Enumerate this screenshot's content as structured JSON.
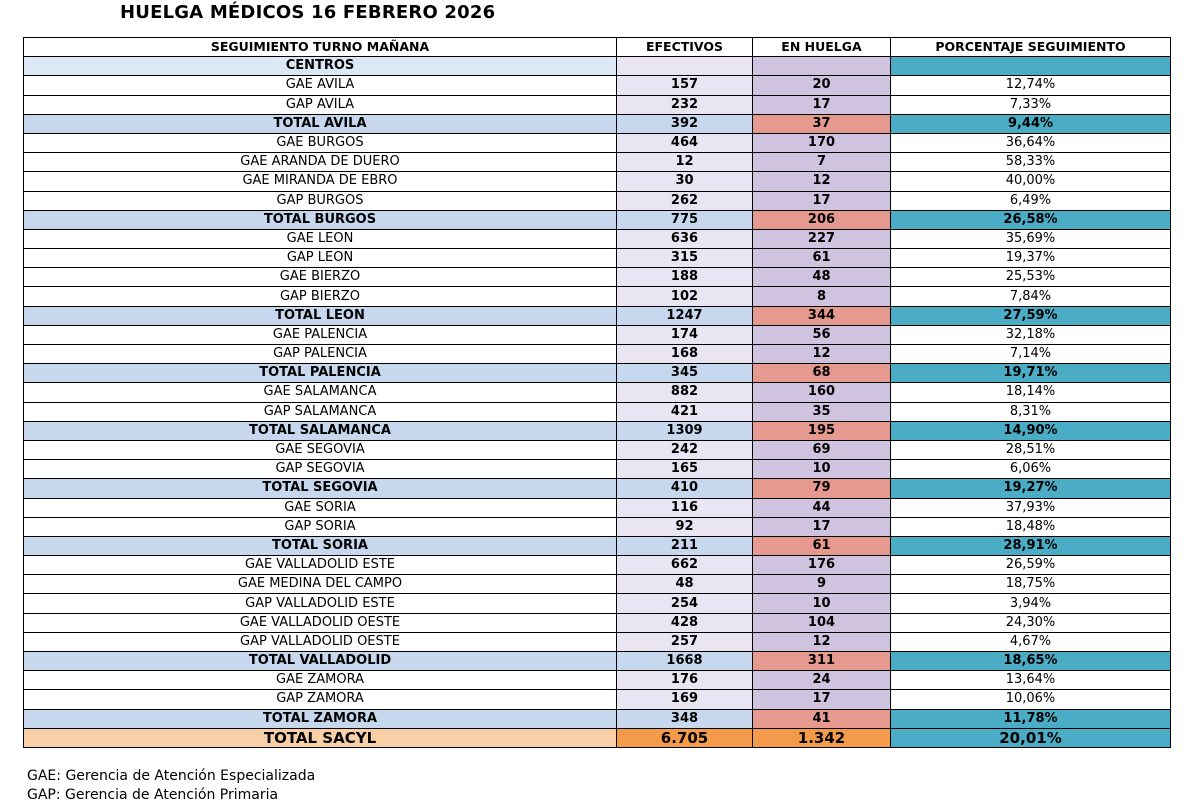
{
  "title": "HUELGA MÉDICOS 16 FEBRERO 2026",
  "table": {
    "headers": [
      "SEGUIMIENTO  TURNO MAÑANA",
      "EFECTIVOS",
      "EN HUELGA",
      "PORCENTAJE SEGUIMIENTO"
    ],
    "centros_label": "CENTROS",
    "rows": [
      {
        "name": "GAE AVILA",
        "efectivos": "157",
        "huelga": "20",
        "pct": "12,74%",
        "kind": "center"
      },
      {
        "name": "GAP AVILA",
        "efectivos": "232",
        "huelga": "17",
        "pct": "7,33%",
        "kind": "center"
      },
      {
        "name": "TOTAL AVILA",
        "efectivos": "392",
        "huelga": "37",
        "pct": "9,44%",
        "kind": "total"
      },
      {
        "name": "GAE BURGOS",
        "efectivos": "464",
        "huelga": "170",
        "pct": "36,64%",
        "kind": "center"
      },
      {
        "name": "GAE ARANDA DE DUERO",
        "efectivos": "12",
        "huelga": "7",
        "pct": "58,33%",
        "kind": "center"
      },
      {
        "name": "GAE MIRANDA DE EBRO",
        "efectivos": "30",
        "huelga": "12",
        "pct": "40,00%",
        "kind": "center"
      },
      {
        "name": "GAP BURGOS",
        "efectivos": "262",
        "huelga": "17",
        "pct": "6,49%",
        "kind": "center"
      },
      {
        "name": "TOTAL BURGOS",
        "efectivos": "775",
        "huelga": "206",
        "pct": "26,58%",
        "kind": "total"
      },
      {
        "name": "GAE LEON",
        "efectivos": "636",
        "huelga": "227",
        "pct": "35,69%",
        "kind": "center"
      },
      {
        "name": "GAP LEON",
        "efectivos": "315",
        "huelga": "61",
        "pct": "19,37%",
        "kind": "center"
      },
      {
        "name": "GAE BIERZO",
        "efectivos": "188",
        "huelga": "48",
        "pct": "25,53%",
        "kind": "center"
      },
      {
        "name": "GAP BIERZO",
        "efectivos": "102",
        "huelga": "8",
        "pct": "7,84%",
        "kind": "center"
      },
      {
        "name": "TOTAL LEON",
        "efectivos": "1247",
        "huelga": "344",
        "pct": "27,59%",
        "kind": "total"
      },
      {
        "name": "GAE PALENCIA",
        "efectivos": "174",
        "huelga": "56",
        "pct": "32,18%",
        "kind": "center"
      },
      {
        "name": "GAP PALENCIA",
        "efectivos": "168",
        "huelga": "12",
        "pct": "7,14%",
        "kind": "center"
      },
      {
        "name": "TOTAL PALENCIA",
        "efectivos": "345",
        "huelga": "68",
        "pct": "19,71%",
        "kind": "total"
      },
      {
        "name": "GAE SALAMANCA",
        "efectivos": "882",
        "huelga": "160",
        "pct": "18,14%",
        "kind": "center"
      },
      {
        "name": "GAP SALAMANCA",
        "efectivos": "421",
        "huelga": "35",
        "pct": "8,31%",
        "kind": "center"
      },
      {
        "name": "TOTAL SALAMANCA",
        "efectivos": "1309",
        "huelga": "195",
        "pct": "14,90%",
        "kind": "total"
      },
      {
        "name": "GAE SEGOVIA",
        "efectivos": "242",
        "huelga": "69",
        "pct": "28,51%",
        "kind": "center"
      },
      {
        "name": "GAP SEGOVIA",
        "efectivos": "165",
        "huelga": "10",
        "pct": "6,06%",
        "kind": "center"
      },
      {
        "name": "TOTAL SEGOVIA",
        "efectivos": "410",
        "huelga": "79",
        "pct": "19,27%",
        "kind": "total"
      },
      {
        "name": "GAE SORIA",
        "efectivos": "116",
        "huelga": "44",
        "pct": "37,93%",
        "kind": "center"
      },
      {
        "name": "GAP SORIA",
        "efectivos": "92",
        "huelga": "17",
        "pct": "18,48%",
        "kind": "center"
      },
      {
        "name": "TOTAL SORIA",
        "efectivos": "211",
        "huelga": "61",
        "pct": "28,91%",
        "kind": "total"
      },
      {
        "name": "GAE VALLADOLID ESTE",
        "efectivos": "662",
        "huelga": "176",
        "pct": "26,59%",
        "kind": "center"
      },
      {
        "name": "GAE MEDINA DEL CAMPO",
        "efectivos": "48",
        "huelga": "9",
        "pct": "18,75%",
        "kind": "center"
      },
      {
        "name": "GAP VALLADOLID ESTE",
        "efectivos": "254",
        "huelga": "10",
        "pct": "3,94%",
        "kind": "center"
      },
      {
        "name": "GAE VALLADOLID OESTE",
        "efectivos": "428",
        "huelga": "104",
        "pct": "24,30%",
        "kind": "center"
      },
      {
        "name": "GAP VALLADOLID OESTE",
        "efectivos": "257",
        "huelga": "12",
        "pct": "4,67%",
        "kind": "center"
      },
      {
        "name": "TOTAL VALLADOLID",
        "efectivos": "1668",
        "huelga": "311",
        "pct": "18,65%",
        "kind": "total"
      },
      {
        "name": "GAE ZAMORA",
        "efectivos": "176",
        "huelga": "24",
        "pct": "13,64%",
        "kind": "center"
      },
      {
        "name": "GAP ZAMORA",
        "efectivos": "169",
        "huelga": "17",
        "pct": "10,06%",
        "kind": "center"
      },
      {
        "name": "TOTAL ZAMORA",
        "efectivos": "348",
        "huelga": "41",
        "pct": "11,78%",
        "kind": "total"
      }
    ],
    "grand_total": {
      "name": "TOTAL SACYL",
      "efectivos": "6.705",
      "huelga": "1.342",
      "pct": "20,01%"
    }
  },
  "footnotes": [
    "GAE: Gerencia de Atención Especializada",
    "GAP: Gerencia de Atención Primaria"
  ]
}
